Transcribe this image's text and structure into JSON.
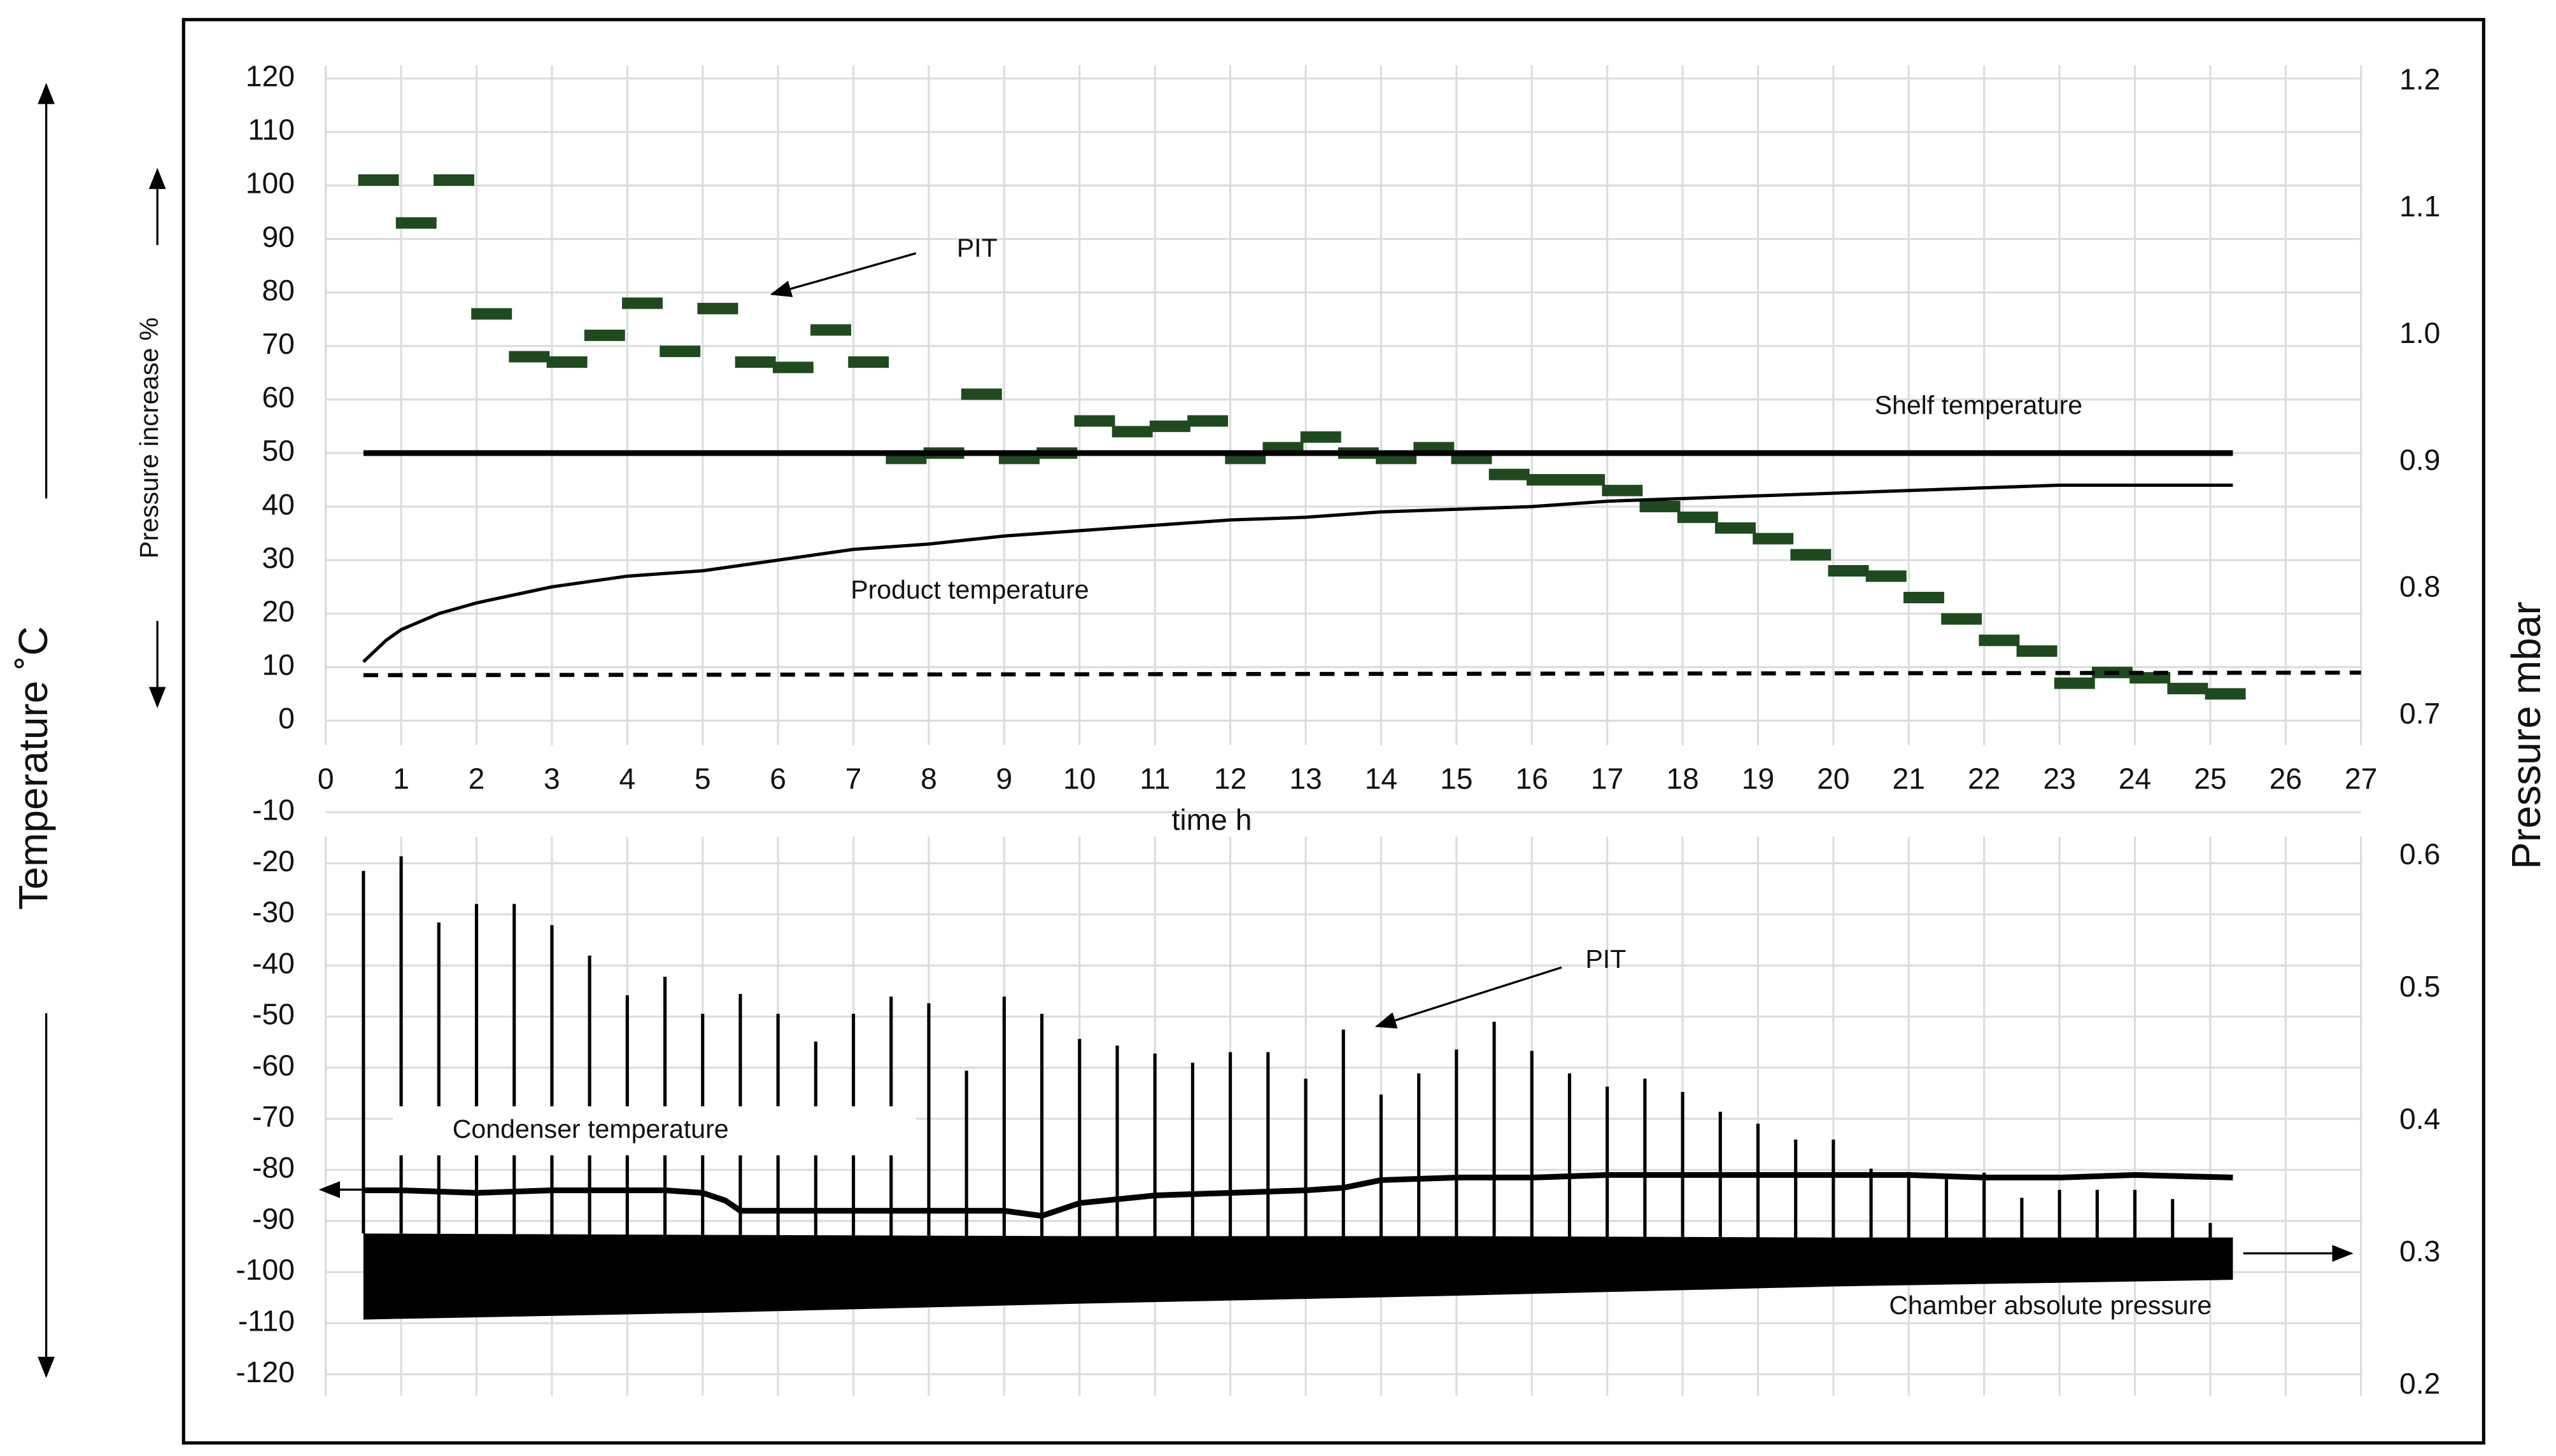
{
  "chart_data": [
    {
      "type": "line",
      "xlabel": "time h",
      "ylabel": "Pressure increase %",
      "y2label": "Pressure mbar",
      "xlim": [
        0,
        27
      ],
      "xticks": [
        0,
        1,
        2,
        3,
        4,
        5,
        6,
        7,
        8,
        9,
        10,
        11,
        12,
        13,
        14,
        15,
        16,
        17,
        18,
        19,
        20,
        21,
        22,
        23,
        24,
        25,
        26,
        27
      ],
      "ylim": [
        0,
        120
      ],
      "yticks": [
        0,
        10,
        20,
        30,
        40,
        50,
        60,
        70,
        80,
        90,
        100,
        110,
        120
      ],
      "y2lim": [
        0.7,
        1.2
      ],
      "y2ticks": [
        0.7,
        0.8,
        0.9,
        {
          "value": 1,
          "label": "1.0"
        },
        1.1,
        1.2
      ],
      "grid": true,
      "series": [
        {
          "name": "PIT",
          "color": "#1f4a1f",
          "style": "dash",
          "x": [
            0.7,
            1.2,
            1.7,
            2.2,
            2.7,
            3.2,
            3.7,
            4.2,
            4.7,
            5.2,
            5.7,
            6.2,
            6.7,
            7.2,
            7.7,
            8.2,
            8.7,
            9.2,
            9.7,
            10.2,
            10.7,
            11.2,
            11.7,
            12.2,
            12.7,
            13.2,
            13.7,
            14.2,
            14.7,
            15.2,
            15.7,
            16.2,
            16.7,
            17.2,
            17.7,
            18.2,
            18.7,
            19.2,
            19.7,
            20.2,
            20.7,
            21.2,
            21.7,
            22.2,
            22.7,
            23.2,
            23.7,
            24.2,
            24.7,
            25.2
          ],
          "values": [
            101,
            93,
            101,
            76,
            68,
            67,
            72,
            78,
            69,
            77,
            67,
            66,
            73,
            67,
            49,
            50,
            61,
            49,
            50,
            56,
            54,
            55,
            56,
            49,
            51,
            53,
            50,
            49,
            51,
            49,
            46,
            45,
            45,
            43,
            40,
            38,
            36,
            34,
            31,
            28,
            27,
            23,
            19,
            15,
            13,
            7,
            9,
            8,
            6,
            5
          ]
        },
        {
          "name": "Shelf temperature",
          "color": "#000000",
          "style": "solid",
          "width": 3.5,
          "x": [
            0.5,
            25.3
          ],
          "values": [
            50,
            50
          ]
        },
        {
          "name": "Product  temperature",
          "color": "#000000",
          "style": "solid",
          "width": 2,
          "x": [
            0.5,
            0.8,
            1,
            1.5,
            2,
            3,
            4,
            5,
            6,
            7,
            8,
            9,
            10,
            11,
            12,
            13,
            14,
            15,
            16,
            17,
            18,
            19,
            20,
            21,
            22,
            23,
            24,
            25.3
          ],
          "values": [
            11,
            15,
            17,
            20,
            22,
            25,
            27,
            28,
            30,
            32,
            33,
            34.5,
            35.5,
            36.5,
            37.5,
            38,
            39,
            39.5,
            40,
            41,
            41.5,
            42,
            42.5,
            43,
            43.5,
            44,
            44,
            44
          ]
        },
        {
          "color": "#000000",
          "style": "dashed",
          "width": 2.5,
          "axis": "y2",
          "x": [
            0.5,
            27
          ],
          "values": [
            0.732,
            0.734
          ]
        }
      ]
    },
    {
      "type": "line",
      "ylabel": "Temperature ˚C",
      "xlim": [
        0,
        27
      ],
      "ylim": [
        -120,
        -10
      ],
      "yticks": [
        -120,
        -110,
        -100,
        -90,
        -80,
        -70,
        -60,
        -50,
        -40,
        -30,
        -20,
        -10
      ],
      "y2lim": [
        0.2,
        0.6
      ],
      "y2ticks": [
        0.2,
        0.3,
        0.4,
        0.5,
        0.6
      ],
      "grid": true,
      "annotations": [
        "PIT"
      ],
      "series": [
        {
          "name": "Condenser temperature",
          "color": "#000000",
          "style": "solid",
          "width": 3.5,
          "x": [
            0.5,
            1,
            2,
            3,
            4,
            4.5,
            5,
            5.3,
            5.5,
            6,
            7,
            8,
            9,
            9.5,
            10,
            11,
            12,
            13,
            13.5,
            14,
            15,
            16,
            17,
            18,
            19,
            20,
            21,
            22,
            23,
            24,
            25.3
          ],
          "values": [
            -84,
            -84,
            -84.5,
            -84,
            -84,
            -84,
            -84.5,
            -86,
            -88,
            -88,
            -88,
            -88,
            -88,
            -89,
            -86.5,
            -85,
            -84.5,
            -84,
            -83.5,
            -82,
            -81.5,
            -81.5,
            -81,
            -81,
            -81,
            -81,
            -81,
            -81.5,
            -81.5,
            -81,
            -81.5
          ]
        },
        {
          "name": "Chamber absolute pressure",
          "color": "#000000",
          "style": "spikes",
          "axis": "y2",
          "x": [
            0.5,
            1,
            1.5,
            2,
            2.5,
            3,
            3.5,
            4,
            4.5,
            5,
            5.5,
            6,
            6.5,
            7,
            7.5,
            8,
            8.5,
            9,
            9.5,
            10,
            10.5,
            11,
            11.5,
            12,
            12.5,
            13,
            13.5,
            14,
            14.5,
            15,
            15.5,
            16,
            16.5,
            17,
            17.5,
            18,
            18.5,
            19,
            19.5,
            20,
            20.5,
            21,
            21.5,
            22,
            22.5,
            23,
            23.5,
            24,
            24.5,
            25
          ],
          "values": [
            0.589,
            0.6,
            0.55,
            0.564,
            0.564,
            0.548,
            0.525,
            0.495,
            0.509,
            0.481,
            0.496,
            0.481,
            0.46,
            0.481,
            0.494,
            0.489,
            0.438,
            0.494,
            0.481,
            0.462,
            0.457,
            0.451,
            0.444,
            0.452,
            0.452,
            0.432,
            0.469,
            0.42,
            0.436,
            0.454,
            0.475,
            0.453,
            0.436,
            0.426,
            0.432,
            0.422,
            0.407,
            0.398,
            0.386,
            0.386,
            0.364,
            0.361,
            0.356,
            0.361,
            0.342,
            0.348,
            0.348,
            0.348,
            0.341,
            0.323
          ],
          "band_x": [
            0.5,
            5,
            10,
            15,
            20,
            25.3
          ],
          "band_low": [
            0.25,
            0.255,
            0.262,
            0.268,
            0.275,
            0.28
          ],
          "band_high": [
            0.315,
            0.314,
            0.313,
            0.313,
            0.312,
            0.312
          ]
        }
      ]
    }
  ]
}
